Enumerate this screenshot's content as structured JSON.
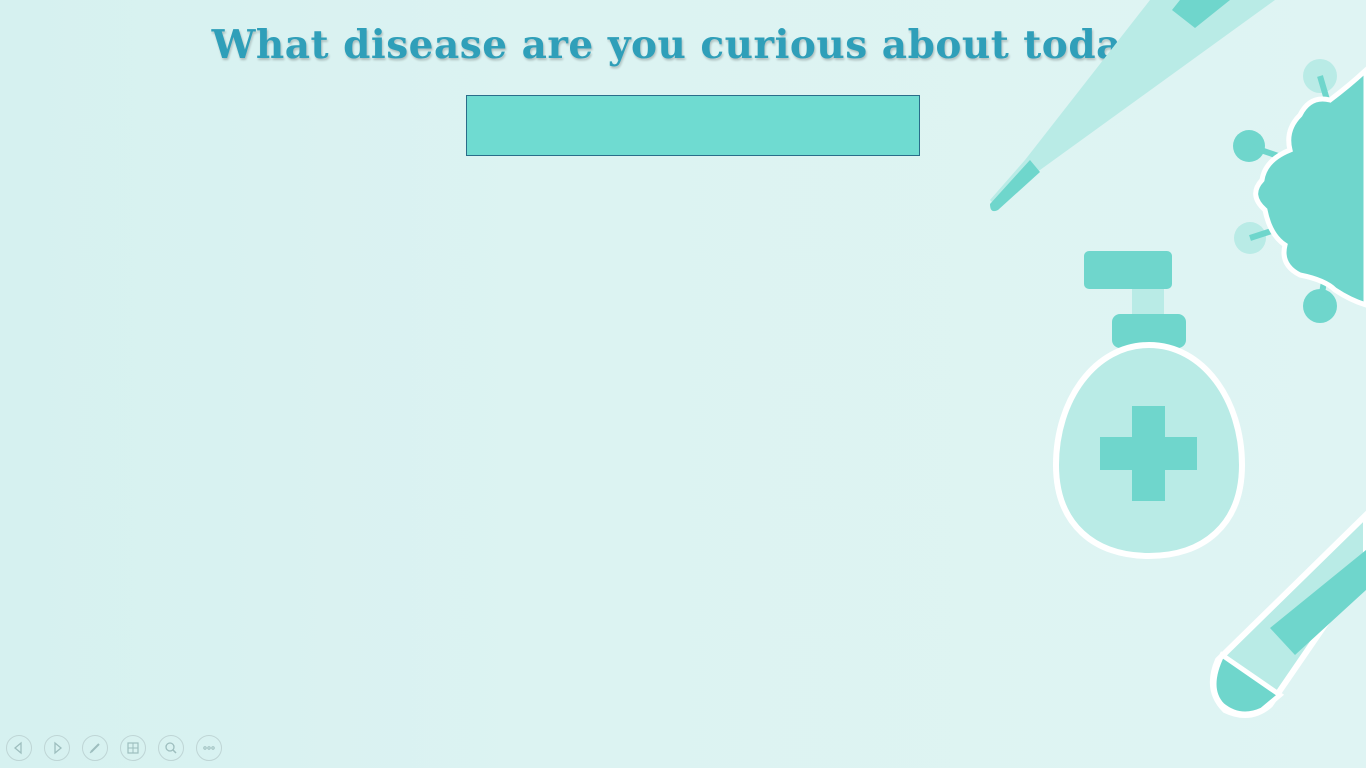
{
  "slide": {
    "title": "What disease are you curious about today?",
    "answer_box_text": ""
  },
  "colors": {
    "background": "#daf2f1",
    "title": "#2f9fb9",
    "answer_box_fill": "#6fdbd1",
    "answer_box_border": "#2a6d8a",
    "illustration_dark": "#6fd6cc",
    "illustration_light": "#b9ebe6"
  },
  "toolbar": {
    "buttons": [
      {
        "name": "previous-slide",
        "icon": "arrow-left-icon"
      },
      {
        "name": "next-slide",
        "icon": "arrow-right-icon"
      },
      {
        "name": "pen-tool",
        "icon": "pen-icon"
      },
      {
        "name": "see-all-slides",
        "icon": "slides-grid-icon"
      },
      {
        "name": "zoom",
        "icon": "magnifier-icon"
      },
      {
        "name": "more-options",
        "icon": "ellipsis-icon"
      }
    ]
  }
}
